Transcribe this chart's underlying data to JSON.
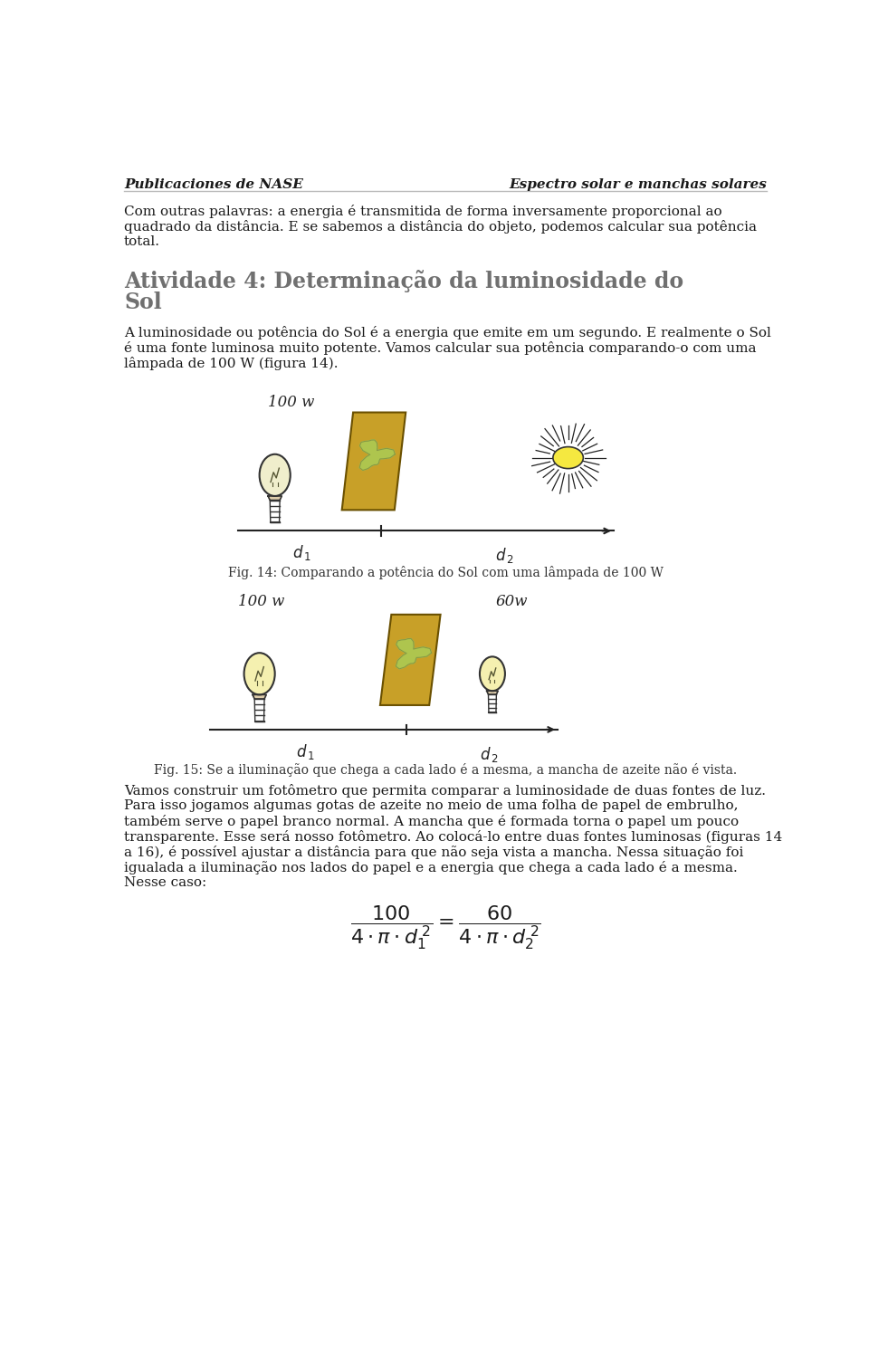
{
  "header_left": "Publicaciones de NASE",
  "header_right": "Espectro solar e manchas solares",
  "para1_lines": [
    "Com outras palavras: a energia é transmitida de forma inversamente proporcional ao",
    "quadrado da distância. E se sabemos a distância do objeto, podemos calcular sua potência",
    "total."
  ],
  "section_line1": "Atividade 4: Determinação da luminosidade do",
  "section_line2": "Sol",
  "para2_lines": [
    "A luminosidade ou potência do Sol é a energia que emite em um segundo. E realmente o Sol",
    "é uma fonte luminosa muito potente. Vamos calcular sua potência comparando-o com uma",
    "lâmpada de 100 W (figura 14)."
  ],
  "fig14_caption": "Fig. 14: Comparando a potência do Sol com uma lâmpada de 100 W",
  "fig15_caption": "Fig. 15: Se a iluminação que chega a cada lado é a mesma, a mancha de azeite não é vista.",
  "para3_lines": [
    "Vamos construir um fotômetro que permita comparar a luminosidade de duas fontes de luz.",
    "Para isso jogamos algumas gotas de azeite no meio de uma folha de papel de embrulho,",
    "também serve o papel branco normal. A mancha que é formada torna o papel um pouco",
    "transparente. Esse será nosso fotômetro. Ao colocá-lo entre duas fontes luminosas (figuras 14",
    "a 16), é possível ajustar a distância para que não seja vista a mancha. Nessa situação foi",
    "igualada a iluminação nos lados do papel e a energia que chega a cada lado é a mesma.",
    "Nesse caso:"
  ],
  "bg_color": "#ffffff",
  "text_color": "#1a1a1a",
  "header_color": "#1a1a1a",
  "section_color": "#707070"
}
